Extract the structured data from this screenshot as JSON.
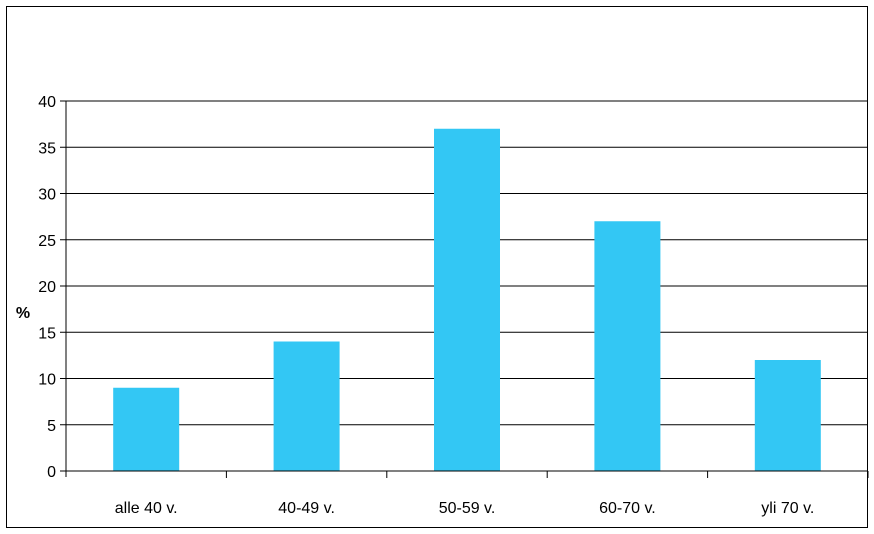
{
  "chart_data": {
    "type": "bar",
    "title": "",
    "xlabel": "",
    "ylabel": "%",
    "categories": [
      "alle 40 v.",
      "40-49 v.",
      "50-59 v.",
      "60-70 v.",
      "yli 70 v."
    ],
    "values": [
      9,
      14,
      37,
      27,
      12
    ],
    "ylim": [
      0,
      40
    ],
    "yticks": [
      0,
      5,
      10,
      15,
      20,
      25,
      30,
      35,
      40
    ],
    "grid": true,
    "legend": "none",
    "colors": {
      "bar": "#33c7f4",
      "grid": "#000000",
      "axis": "#000000"
    }
  }
}
